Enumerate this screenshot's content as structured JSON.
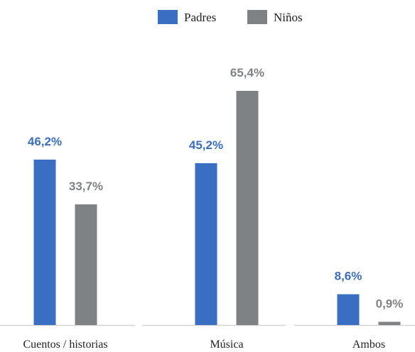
{
  "chart_data": {
    "type": "bar",
    "categories": [
      "Cuentos / historias",
      "Música",
      "Ambos"
    ],
    "series": [
      {
        "name": "Padres",
        "values": [
          46.2,
          45.2,
          8.6
        ],
        "labels": [
          "46,2%",
          "45,2%",
          "8,6%"
        ],
        "color": "#3a6ec2"
      },
      {
        "name": "Niños",
        "values": [
          33.7,
          65.4,
          0.9
        ],
        "labels": [
          "33,7%",
          "65,4%",
          "0,9%"
        ],
        "color": "#7f8284"
      }
    ],
    "title": "",
    "xlabel": "",
    "ylabel": "",
    "ylim": [
      0,
      70
    ],
    "grid": false,
    "legend": "top-center",
    "baseline_color": "#d3d3d3"
  }
}
